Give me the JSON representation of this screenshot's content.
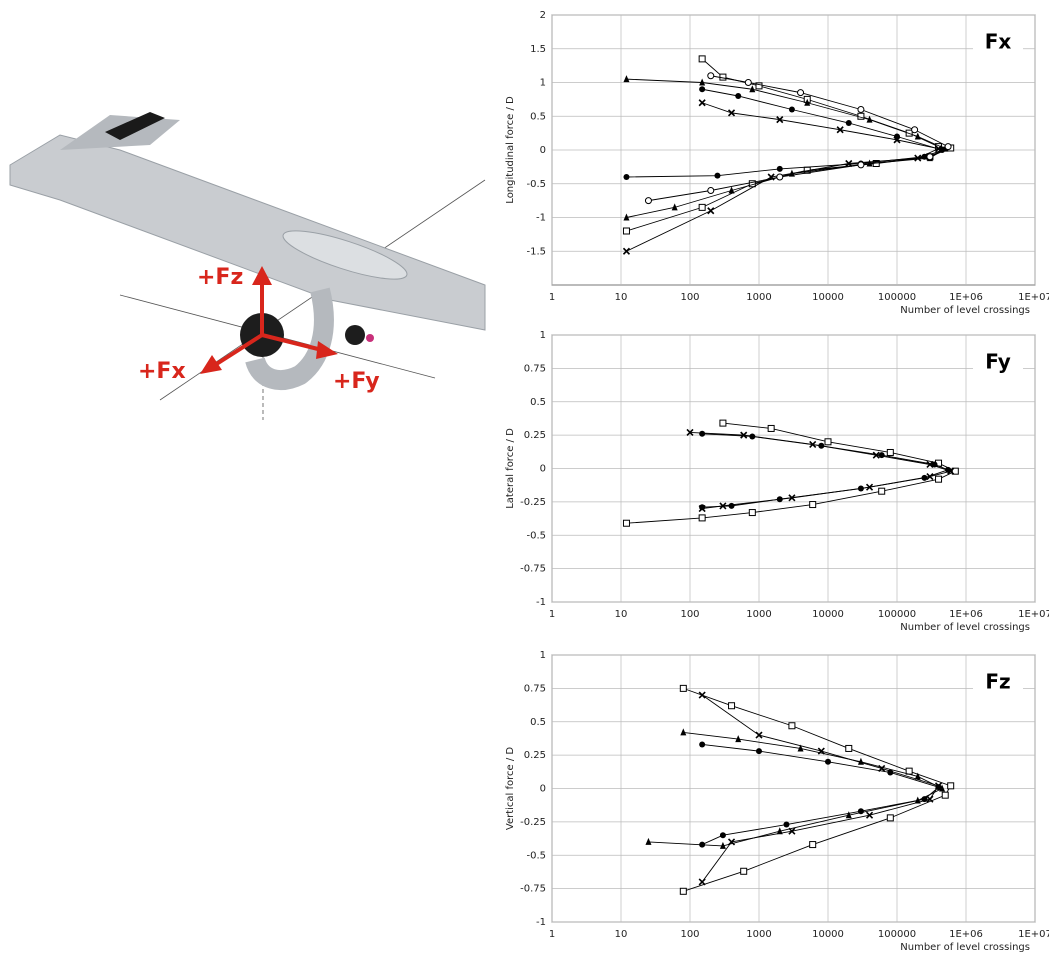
{
  "illustration": {
    "labels": [
      "+Fz",
      "+Fx",
      "+Fy"
    ]
  },
  "chart_data": [
    {
      "type": "line",
      "title": "Fx",
      "xlabel": "Number of level crossings",
      "ylabel": "Longitudinal force / D",
      "xscale": "log",
      "grid": true,
      "xlim": [
        1,
        10000000
      ],
      "ylim": [
        -2,
        2
      ],
      "xticks": [
        1,
        10,
        100,
        1000,
        10000,
        100000,
        {
          "value": 1000000,
          "label": "1E+06"
        },
        {
          "value": 10000000,
          "label": "1E+07"
        }
      ],
      "yticks": [
        2,
        1.5,
        1,
        0.5,
        0,
        -0.5,
        -1,
        -1.5
      ],
      "series": [
        {
          "marker": "square",
          "color": "#000000",
          "x": [
            150,
            300,
            1000,
            5000,
            30000,
            150000,
            400000,
            600000,
            300000,
            50000,
            5000,
            800,
            150,
            12
          ],
          "values": [
            1.35,
            1.08,
            0.95,
            0.75,
            0.5,
            0.25,
            0.05,
            0.03,
            -0.1,
            -0.2,
            -0.3,
            -0.5,
            -0.85,
            -1.2
          ]
        },
        {
          "marker": "triangle",
          "color": "#000000",
          "x": [
            12,
            150,
            800,
            5000,
            40000,
            200000,
            500000,
            300000,
            40000,
            3000,
            400,
            60,
            12
          ],
          "values": [
            1.05,
            1.0,
            0.9,
            0.7,
            0.45,
            0.2,
            0.02,
            -0.12,
            -0.2,
            -0.35,
            -0.6,
            -0.85,
            -1.0
          ]
        },
        {
          "marker": "dot",
          "color": "#000000",
          "x": [
            150,
            500,
            3000,
            20000,
            100000,
            450000,
            250000,
            30000,
            2000,
            250,
            12
          ],
          "values": [
            0.9,
            0.8,
            0.6,
            0.4,
            0.2,
            0.0,
            -0.1,
            -0.2,
            -0.28,
            -0.38,
            -0.4
          ]
        },
        {
          "marker": "cross",
          "color": "#000000",
          "x": [
            150,
            400,
            2000,
            15000,
            100000,
            400000,
            200000,
            20000,
            1500,
            200,
            12
          ],
          "values": [
            0.7,
            0.55,
            0.45,
            0.3,
            0.15,
            0.02,
            -0.12,
            -0.2,
            -0.4,
            -0.9,
            -1.5
          ]
        },
        {
          "marker": "circle",
          "color": "#000000",
          "x": [
            200,
            700,
            4000,
            30000,
            180000,
            550000,
            300000,
            30000,
            2000,
            200,
            25
          ],
          "values": [
            1.1,
            1.0,
            0.85,
            0.6,
            0.3,
            0.05,
            -0.1,
            -0.22,
            -0.4,
            -0.6,
            -0.75
          ]
        }
      ]
    },
    {
      "type": "line",
      "title": "Fy",
      "xlabel": "Number of level crossings",
      "ylabel": "Lateral force / D",
      "xscale": "log",
      "grid": true,
      "xlim": [
        1,
        10000000
      ],
      "ylim": [
        -1,
        1
      ],
      "xticks": [
        1,
        10,
        100,
        1000,
        10000,
        100000,
        {
          "value": 1000000,
          "label": "1E+06"
        },
        {
          "value": 10000000,
          "label": "1E+07"
        }
      ],
      "yticks": [
        1,
        0.75,
        0.5,
        0.25,
        0,
        -0.25,
        -0.5,
        -0.75,
        -1
      ],
      "series": [
        {
          "marker": "square",
          "color": "#000000",
          "x": [
            300,
            1500,
            10000,
            80000,
            400000,
            700000,
            400000,
            60000,
            6000,
            800,
            150,
            12
          ],
          "values": [
            0.34,
            0.3,
            0.2,
            0.12,
            0.04,
            -0.02,
            -0.08,
            -0.17,
            -0.27,
            -0.33,
            -0.37,
            -0.41
          ]
        },
        {
          "marker": "cross",
          "color": "#000000",
          "x": [
            100,
            600,
            6000,
            50000,
            300000,
            600000,
            300000,
            40000,
            3000,
            300,
            150
          ],
          "values": [
            0.27,
            0.25,
            0.18,
            0.1,
            0.03,
            -0.02,
            -0.06,
            -0.14,
            -0.22,
            -0.28,
            -0.3
          ]
        },
        {
          "marker": "dot",
          "color": "#000000",
          "x": [
            150,
            800,
            8000,
            60000,
            350000,
            550000,
            250000,
            30000,
            2000,
            400,
            150
          ],
          "values": [
            0.26,
            0.24,
            0.17,
            0.1,
            0.03,
            -0.01,
            -0.07,
            -0.15,
            -0.23,
            -0.28,
            -0.29
          ]
        }
      ]
    },
    {
      "type": "line",
      "title": "Fz",
      "xlabel": "Number of level crossings",
      "ylabel": "Vertical force / D",
      "xscale": "log",
      "grid": true,
      "xlim": [
        1,
        10000000
      ],
      "ylim": [
        -1,
        1
      ],
      "xticks": [
        1,
        10,
        100,
        1000,
        10000,
        100000,
        {
          "value": 1000000,
          "label": "1E+06"
        },
        {
          "value": 10000000,
          "label": "1E+07"
        }
      ],
      "yticks": [
        1,
        0.75,
        0.5,
        0.25,
        0,
        -0.25,
        -0.5,
        -0.75,
        -1
      ],
      "series": [
        {
          "marker": "square",
          "color": "#000000",
          "x": [
            80,
            400,
            3000,
            20000,
            150000,
            600000,
            500000,
            80000,
            6000,
            600,
            80
          ],
          "values": [
            0.75,
            0.62,
            0.47,
            0.3,
            0.13,
            0.02,
            -0.05,
            -0.22,
            -0.42,
            -0.62,
            -0.77
          ]
        },
        {
          "marker": "cross",
          "color": "#000000",
          "x": [
            150,
            1000,
            8000,
            60000,
            400000,
            300000,
            40000,
            3000,
            400,
            150
          ],
          "values": [
            0.7,
            0.4,
            0.28,
            0.15,
            0.02,
            -0.08,
            -0.2,
            -0.32,
            -0.4,
            -0.7
          ]
        },
        {
          "marker": "triangle",
          "color": "#000000",
          "x": [
            80,
            500,
            4000,
            30000,
            200000,
            450000,
            200000,
            20000,
            2000,
            300,
            25
          ],
          "values": [
            0.42,
            0.37,
            0.3,
            0.2,
            0.09,
            0.0,
            -0.09,
            -0.2,
            -0.32,
            -0.43,
            -0.4
          ]
        },
        {
          "marker": "dot",
          "color": "#000000",
          "x": [
            150,
            1000,
            10000,
            80000,
            400000,
            250000,
            30000,
            2500,
            300,
            150
          ],
          "values": [
            0.33,
            0.28,
            0.2,
            0.12,
            0.01,
            -0.08,
            -0.17,
            -0.27,
            -0.35,
            -0.42
          ]
        }
      ]
    }
  ]
}
